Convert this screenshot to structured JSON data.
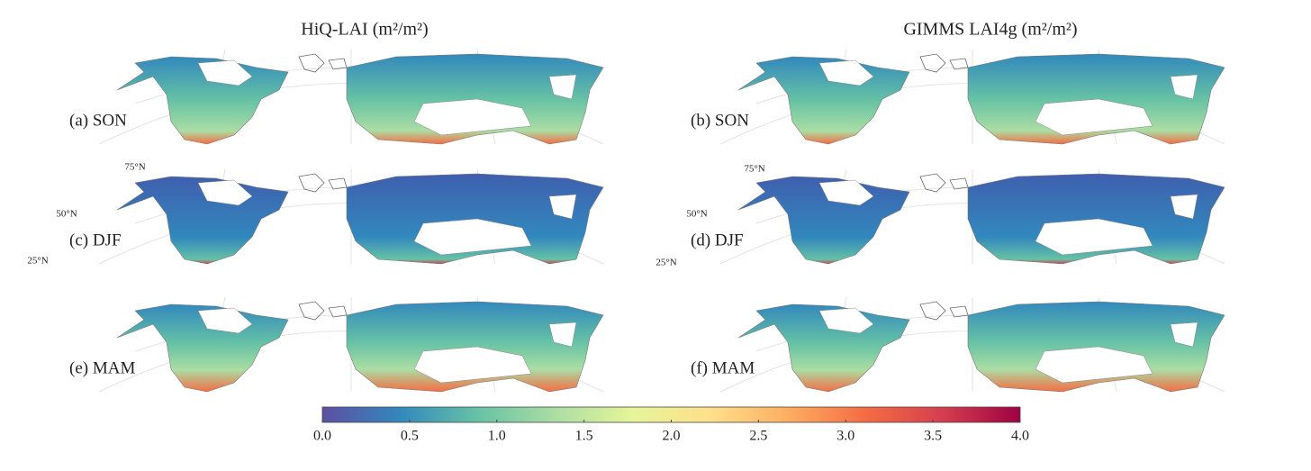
{
  "columns": [
    "HiQ-LAI (m²/m²)",
    "GIMMS LAI4g (m²/m²)"
  ],
  "panels": [
    "(a) SON",
    "(b) SON",
    "(c) DJF",
    "(d) DJF",
    "(e) MAM",
    "(f) MAM"
  ],
  "lat_labels": {
    "left": [
      "75°N",
      "50°N",
      "25°N"
    ],
    "right": [
      "75°N",
      "50°N",
      "25°N"
    ]
  },
  "colorbar": {
    "lim": [
      0,
      4
    ],
    "ticks": [
      {
        "value": 0,
        "label": "0.0"
      },
      {
        "value": 0.5,
        "label": "0.5"
      },
      {
        "value": 1,
        "label": "1.0"
      },
      {
        "value": 1.5,
        "label": "1.5"
      },
      {
        "value": 2,
        "label": "2.0"
      },
      {
        "value": 2.5,
        "label": "2.5"
      },
      {
        "value": 3,
        "label": "3.0"
      },
      {
        "value": 3.5,
        "label": "3.5"
      },
      {
        "value": 4,
        "label": "4.0"
      }
    ],
    "colors": [
      "#5e4fa2",
      "#3288bd",
      "#66c2a5",
      "#abdda4",
      "#e6f598",
      "#fee08b",
      "#fdae61",
      "#f46d43",
      "#d53e4f",
      "#9e0142"
    ]
  }
}
